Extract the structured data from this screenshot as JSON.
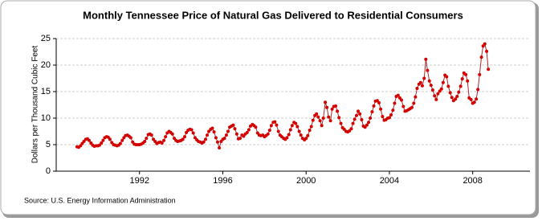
{
  "chart_data": {
    "type": "line",
    "title": "Monthly Tennessee Price of Natural Gas Delivered to Residential Consumers",
    "y_label": "Dollars per Thousand Cubic Feet",
    "source": "Source: U.S. Energy Information Administration",
    "xlim": [
      1988,
      2010.75
    ],
    "xticks": [
      1992,
      1996,
      2000,
      2004,
      2008
    ],
    "ylim": [
      0,
      25
    ],
    "yticks": [
      0,
      5,
      10,
      15,
      20,
      25
    ],
    "grid": true,
    "x": [
      1989,
      1989.08,
      1989.17,
      1989.25,
      1989.33,
      1989.42,
      1989.5,
      1989.58,
      1989.67,
      1989.75,
      1989.83,
      1989.92,
      1990,
      1990.08,
      1990.17,
      1990.25,
      1990.33,
      1990.42,
      1990.5,
      1990.58,
      1990.67,
      1990.75,
      1990.83,
      1990.92,
      1991,
      1991.08,
      1991.17,
      1991.25,
      1991.33,
      1991.42,
      1991.5,
      1991.58,
      1991.67,
      1991.75,
      1991.83,
      1991.92,
      1992,
      1992.08,
      1992.17,
      1992.25,
      1992.33,
      1992.42,
      1992.5,
      1992.58,
      1992.67,
      1992.75,
      1992.83,
      1992.92,
      1993,
      1993.08,
      1993.17,
      1993.25,
      1993.33,
      1993.42,
      1993.5,
      1993.58,
      1993.67,
      1993.75,
      1993.83,
      1993.92,
      1994,
      1994.08,
      1994.17,
      1994.25,
      1994.33,
      1994.42,
      1994.5,
      1994.58,
      1994.67,
      1994.75,
      1994.83,
      1994.92,
      1995,
      1995.08,
      1995.17,
      1995.25,
      1995.33,
      1995.42,
      1995.5,
      1995.58,
      1995.67,
      1995.75,
      1995.83,
      1995.92,
      1996,
      1996.08,
      1996.17,
      1996.25,
      1996.33,
      1996.42,
      1996.5,
      1996.58,
      1996.67,
      1996.75,
      1996.83,
      1996.92,
      1997,
      1997.08,
      1997.17,
      1997.25,
      1997.33,
      1997.42,
      1997.5,
      1997.58,
      1997.67,
      1997.75,
      1997.83,
      1997.92,
      1998,
      1998.08,
      1998.17,
      1998.25,
      1998.33,
      1998.42,
      1998.5,
      1998.58,
      1998.67,
      1998.75,
      1998.83,
      1998.92,
      1999,
      1999.08,
      1999.17,
      1999.25,
      1999.33,
      1999.42,
      1999.5,
      1999.58,
      1999.67,
      1999.75,
      1999.83,
      1999.92,
      2000,
      2000.08,
      2000.17,
      2000.25,
      2000.33,
      2000.42,
      2000.5,
      2000.58,
      2000.67,
      2000.75,
      2000.83,
      2000.92,
      2001,
      2001.08,
      2001.17,
      2001.25,
      2001.33,
      2001.42,
      2001.5,
      2001.58,
      2001.67,
      2001.75,
      2001.83,
      2001.92,
      2002,
      2002.08,
      2002.17,
      2002.25,
      2002.33,
      2002.42,
      2002.5,
      2002.58,
      2002.67,
      2002.75,
      2002.83,
      2002.92,
      2003,
      2003.08,
      2003.17,
      2003.25,
      2003.33,
      2003.42,
      2003.5,
      2003.58,
      2003.67,
      2003.75,
      2003.83,
      2003.92,
      2004,
      2004.08,
      2004.17,
      2004.25,
      2004.33,
      2004.42,
      2004.5,
      2004.58,
      2004.67,
      2004.75,
      2004.83,
      2004.92,
      2005,
      2005.08,
      2005.17,
      2005.25,
      2005.33,
      2005.42,
      2005.5,
      2005.58,
      2005.67,
      2005.75,
      2005.83,
      2005.92,
      2006,
      2006.08,
      2006.17,
      2006.25,
      2006.33,
      2006.42,
      2006.5,
      2006.58,
      2006.67,
      2006.75,
      2006.83,
      2006.92,
      2007,
      2007.08,
      2007.17,
      2007.25,
      2007.33,
      2007.42,
      2007.5,
      2007.58,
      2007.67,
      2007.75,
      2007.83,
      2007.92,
      2008,
      2008.08,
      2008.17,
      2008.25,
      2008.33,
      2008.42,
      2008.5,
      2008.58,
      2008.67,
      2008.75
    ],
    "series": [
      {
        "color": "#d40000",
        "line_color": "#a52a2a",
        "values": [
          4.6,
          4.5,
          4.8,
          5.2,
          5.6,
          6.0,
          6.1,
          5.8,
          5.3,
          4.9,
          4.7,
          4.8,
          4.8,
          4.9,
          5.3,
          5.8,
          6.3,
          6.5,
          6.4,
          6.0,
          5.4,
          5.0,
          4.9,
          4.8,
          4.9,
          5.2,
          5.8,
          6.3,
          6.7,
          6.8,
          6.6,
          6.3,
          5.5,
          5.1,
          5.0,
          5.0,
          5.0,
          5.1,
          5.3,
          5.6,
          6.2,
          6.9,
          7.0,
          6.8,
          6.0,
          5.6,
          5.2,
          5.4,
          5.5,
          5.3,
          5.8,
          6.5,
          7.2,
          7.5,
          7.3,
          7.0,
          6.2,
          5.8,
          5.6,
          5.7,
          5.8,
          6.0,
          6.5,
          7.3,
          7.7,
          7.9,
          7.8,
          7.2,
          6.3,
          5.9,
          5.6,
          5.5,
          5.3,
          5.5,
          6.0,
          6.8,
          7.5,
          7.9,
          8.1,
          7.4,
          6.3,
          5.5,
          4.4,
          5.6,
          6.0,
          6.2,
          6.8,
          7.5,
          8.3,
          8.5,
          8.7,
          8.0,
          7.0,
          6.1,
          6.2,
          6.8,
          6.6,
          7.0,
          7.3,
          7.8,
          8.5,
          8.8,
          8.6,
          8.3,
          7.2,
          6.8,
          6.7,
          6.8,
          6.5,
          6.7,
          7.0,
          7.7,
          8.6,
          9.2,
          9.3,
          8.7,
          7.5,
          6.8,
          6.5,
          6.2,
          6.0,
          6.3,
          6.9,
          7.8,
          8.6,
          9.2,
          9.0,
          8.4,
          7.5,
          6.8,
          6.2,
          5.9,
          6.2,
          6.7,
          7.7,
          8.4,
          9.6,
          10.5,
          10.8,
          10.2,
          9.5,
          8.6,
          10.0,
          13.0,
          12.0,
          10.2,
          9.5,
          11.7,
          12.2,
          12.3,
          11.3,
          10.1,
          9.0,
          8.2,
          7.9,
          7.5,
          7.4,
          7.6,
          8.0,
          9.0,
          9.8,
          10.5,
          11.3,
          10.8,
          9.7,
          8.5,
          8.3,
          8.7,
          9.2,
          10.0,
          11.2,
          12.3,
          13.2,
          13.3,
          12.9,
          11.7,
          10.3,
          9.6,
          9.7,
          10.0,
          10.1,
          10.6,
          11.5,
          12.8,
          14.1,
          14.3,
          13.8,
          13.4,
          12.2,
          11.3,
          11.4,
          11.6,
          11.8,
          12.0,
          12.8,
          14.0,
          15.6,
          16.4,
          16.7,
          16.1,
          17.5,
          21.1,
          19.0,
          17.0,
          16.2,
          15.3,
          14.2,
          13.5,
          14.6,
          15.1,
          15.5,
          16.7,
          18.1,
          17.8,
          16.0,
          14.8,
          13.9,
          13.3,
          13.6,
          14.1,
          14.9,
          16.0,
          17.4,
          18.5,
          18.2,
          17.0,
          13.8,
          13.5,
          12.8,
          13.0,
          13.6,
          15.4,
          18.2,
          21.5,
          23.6,
          24.0,
          22.6,
          19.2
        ]
      }
    ]
  }
}
